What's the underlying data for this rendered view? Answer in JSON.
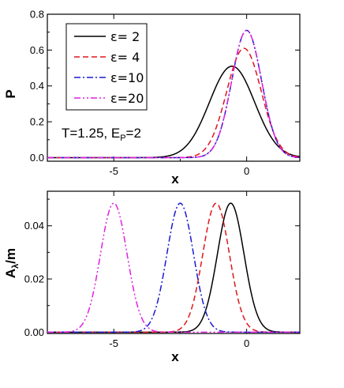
{
  "chart_data": [
    {
      "type": "line",
      "xlabel": "x",
      "ylabel": "P",
      "xlim": [
        -7.5,
        2.0
      ],
      "ylim": [
        -0.02,
        0.8
      ],
      "xticks": [
        -5,
        0
      ],
      "yticks": [
        0.0,
        0.2,
        0.4,
        0.6,
        0.8
      ],
      "ytick_labels": [
        "0.0",
        "0.2",
        "0.4",
        "0.6",
        "0.8"
      ],
      "legend_position": "top-left",
      "annotation": {
        "main": "T=1.25, E",
        "sub": "P",
        "tail": "=2"
      },
      "series": [
        {
          "name": "ε= 2",
          "color": "#000000",
          "style": "solid",
          "center": -0.55,
          "peak": 0.51,
          "sigma": 0.85
        },
        {
          "name": "ε= 4",
          "color": "#e0151b",
          "style": "dashed",
          "center": -0.1,
          "peak": 0.61,
          "sigma": 0.65
        },
        {
          "name": "ε=10",
          "color": "#1a1ad2",
          "style": "dashdot",
          "center": 0.0,
          "peak": 0.71,
          "sigma": 0.56
        },
        {
          "name": "ε=20",
          "color": "#e020e0",
          "style": "dashdotdot",
          "center": 0.0,
          "peak": 0.71,
          "sigma": 0.56
        }
      ]
    },
    {
      "type": "line",
      "xlabel": "x",
      "ylabel": "Aλ/m",
      "ylabel_main": "A",
      "ylabel_sub": "λ",
      "ylabel_tail": "/m",
      "xlim": [
        -7.5,
        2.0
      ],
      "ylim": [
        -0.0005,
        0.053
      ],
      "xticks": [
        -5,
        0
      ],
      "yticks": [
        0.0,
        0.02,
        0.04
      ],
      "ytick_labels": [
        "0.00",
        "0.02",
        "0.04"
      ],
      "series": [
        {
          "color": "#000000",
          "style": "solid",
          "center": -0.6,
          "peak": 0.0485,
          "sigma": 0.5
        },
        {
          "color": "#e0151b",
          "style": "dashed",
          "center": -1.15,
          "peak": 0.0485,
          "sigma": 0.5
        },
        {
          "color": "#1a1ad2",
          "style": "dashdot",
          "center": -2.5,
          "peak": 0.0485,
          "sigma": 0.5
        },
        {
          "color": "#e020e0",
          "style": "dashdotdot",
          "center": -5.0,
          "peak": 0.0485,
          "sigma": 0.5
        }
      ]
    }
  ]
}
